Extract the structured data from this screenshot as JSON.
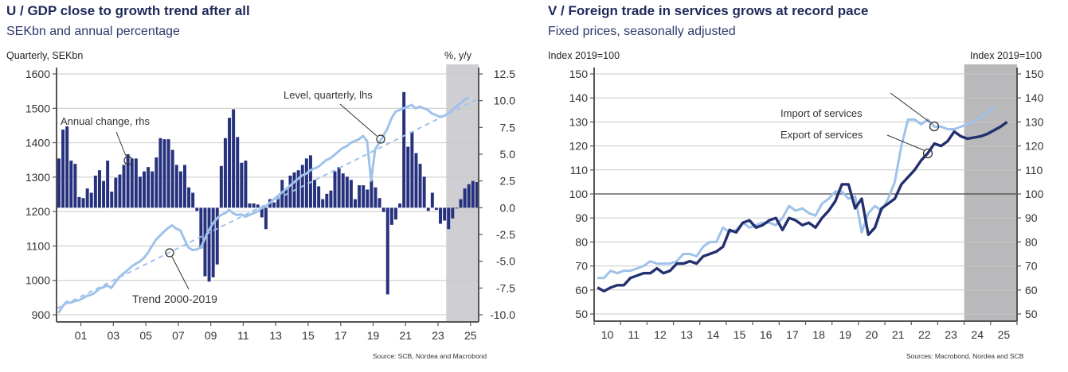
{
  "chart_data": [
    {
      "id": "gdp",
      "type": "bar+line",
      "title": "U / GDP close to growth trend after all",
      "subtitle": "SEKbn and annual percentage",
      "ylabel_left": "Quarterly, SEKbn",
      "ylabel_right": "%, y/y",
      "source": "Source: SCB, Nordea and Macrobond",
      "ylim_left": [
        900,
        1600
      ],
      "ylim_right": [
        -10,
        12.5
      ],
      "yticks_left": [
        "1600",
        "1500",
        "1400",
        "1300",
        "1200",
        "1100",
        "1000",
        "900"
      ],
      "yticks_right": [
        "12.5",
        "10.0",
        "7.5",
        "5.0",
        "2.5",
        "0.0",
        "-2.5",
        "-5.0",
        "-7.5",
        "-10.0"
      ],
      "xticks": [
        "01",
        "03",
        "05",
        "07",
        "09",
        "11",
        "13",
        "15",
        "17",
        "19",
        "21",
        "23",
        "25"
      ],
      "x_range": [
        2000.0,
        2026.0
      ],
      "forecast_start": 2024.0,
      "grid": true,
      "annotations": [
        "Annual change, rhs",
        "Level, quarterly, lhs",
        "Trend 2000-2019"
      ],
      "series": [
        {
          "name": "Annual change, rhs",
          "kind": "bar",
          "axis": "right",
          "color": "#27327e",
          "start": 2000.0,
          "step": 0.25,
          "values": [
            4.6,
            7.3,
            7.6,
            4.4,
            4.1,
            1.0,
            0.9,
            1.8,
            1.4,
            3.0,
            3.5,
            2.5,
            4.4,
            1.5,
            2.8,
            3.1,
            4.0,
            5.0,
            4.6,
            4.6,
            2.9,
            3.4,
            3.8,
            3.4,
            4.7,
            6.5,
            6.4,
            6.4,
            5.4,
            4.0,
            3.4,
            4.0,
            1.9,
            1.4,
            -0.3,
            -3.8,
            -6.4,
            -6.9,
            -6.5,
            -5.3,
            3.9,
            6.5,
            8.4,
            9.2,
            6.6,
            4.2,
            4.4,
            0.4,
            0.4,
            0.3,
            -0.9,
            -2.0,
            0.8,
            0.5,
            1.0,
            2.6,
            1.7,
            3.0,
            3.3,
            3.5,
            4.0,
            4.6,
            4.9,
            2.6,
            2.0,
            0.8,
            1.3,
            1.6,
            3.4,
            3.8,
            3.2,
            2.9,
            2.6,
            0.8,
            2.1,
            2.1,
            1.7,
            2.6,
            1.9,
            0.9,
            -0.4,
            -8.1,
            -1.6,
            -1.1,
            0.4,
            10.8,
            5.7,
            7.1,
            5.1,
            4.1,
            2.9,
            -0.3,
            1.4,
            -0.2,
            -1.5,
            -1.2,
            -2.0,
            -1.0,
            0.0,
            0.8,
            1.8,
            2.2,
            2.5,
            2.4
          ]
        },
        {
          "name": "Level, quarterly, lhs",
          "kind": "line",
          "axis": "left",
          "color": "#9fc2ea",
          "start": 2000.0,
          "step": 0.25,
          "values": [
            905,
            925,
            938,
            935,
            940,
            942,
            948,
            955,
            958,
            965,
            975,
            980,
            985,
            978,
            995,
            1010,
            1020,
            1030,
            1040,
            1048,
            1055,
            1065,
            1080,
            1100,
            1118,
            1130,
            1142,
            1152,
            1160,
            1150,
            1145,
            1120,
            1095,
            1088,
            1090,
            1095,
            1120,
            1145,
            1165,
            1180,
            1190,
            1195,
            1205,
            1195,
            1190,
            1192,
            1185,
            1190,
            1195,
            1200,
            1210,
            1215,
            1225,
            1235,
            1245,
            1255,
            1265,
            1275,
            1285,
            1295,
            1305,
            1310,
            1320,
            1325,
            1330,
            1340,
            1350,
            1355,
            1365,
            1375,
            1385,
            1390,
            1400,
            1405,
            1410,
            1420,
            1405,
            1290,
            1380,
            1400,
            1420,
            1440,
            1470,
            1490,
            1495,
            1500,
            1505,
            1510,
            1500,
            1505,
            1500,
            1495,
            1485,
            1480,
            1475,
            1478,
            1485,
            1495,
            1505,
            1515,
            1525,
            1532
          ]
        },
        {
          "name": "Trend 2000-2019",
          "kind": "line-dashed",
          "axis": "left",
          "color": "#9fc2ea",
          "points": [
            [
              2000.0,
              918
            ],
            [
              2026.0,
              1528
            ]
          ]
        }
      ]
    },
    {
      "id": "trade",
      "type": "line",
      "title": "V / Foreign trade in services grows at record pace",
      "subtitle": "Fixed prices, seasonally adjusted",
      "ylabel_left": "Index 2019=100",
      "ylabel_right": "Index 2019=100",
      "source": "Sources: Macrobond, Nordea and SCB",
      "ylim": [
        50,
        150
      ],
      "yticks": [
        "150",
        "140",
        "130",
        "120",
        "110",
        "100",
        "90",
        "80",
        "70",
        "60",
        "50"
      ],
      "xticks": [
        "10",
        "11",
        "12",
        "13",
        "14",
        "15",
        "16",
        "17",
        "18",
        "19",
        "20",
        "21",
        "22",
        "23",
        "24",
        "25"
      ],
      "x_range": [
        2010.0,
        2026.0
      ],
      "forecast_start": 2024.0,
      "reference_line": 100,
      "grid": true,
      "annotations": [
        "Import of services",
        "Export of services"
      ],
      "series": [
        {
          "name": "Import of services",
          "color": "#9fc2ea",
          "start": 2010.0,
          "step": 0.25,
          "values": [
            65,
            65,
            68,
            67,
            68,
            68,
            69,
            70,
            72,
            71,
            71,
            71,
            72,
            75,
            75,
            74,
            78,
            80,
            80,
            86,
            84,
            85,
            88,
            86,
            87,
            88,
            88,
            87,
            90,
            95,
            93,
            94,
            92,
            91,
            96,
            98,
            101,
            101,
            98,
            99,
            84,
            92,
            95,
            93,
            98,
            105,
            120,
            131,
            131,
            129,
            131,
            128,
            128,
            127,
            127,
            128,
            129,
            130,
            132,
            134,
            136
          ]
        },
        {
          "name": "Export of services",
          "color": "#23306f",
          "start": 2010.0,
          "step": 0.25,
          "values": [
            61,
            59.5,
            61,
            62,
            62,
            65,
            66,
            67,
            67,
            69,
            67,
            68,
            71,
            71,
            72,
            71,
            74,
            75,
            76,
            78,
            85,
            84,
            88,
            89,
            86,
            87,
            89,
            90,
            85,
            90,
            89,
            87,
            88,
            86,
            90,
            93,
            97,
            104,
            104,
            94,
            98,
            83,
            86,
            94,
            96,
            98,
            104,
            107,
            110,
            114,
            117,
            121,
            120,
            122,
            126,
            124,
            123,
            123.5,
            124,
            125,
            126.5,
            128,
            130
          ]
        }
      ]
    }
  ]
}
